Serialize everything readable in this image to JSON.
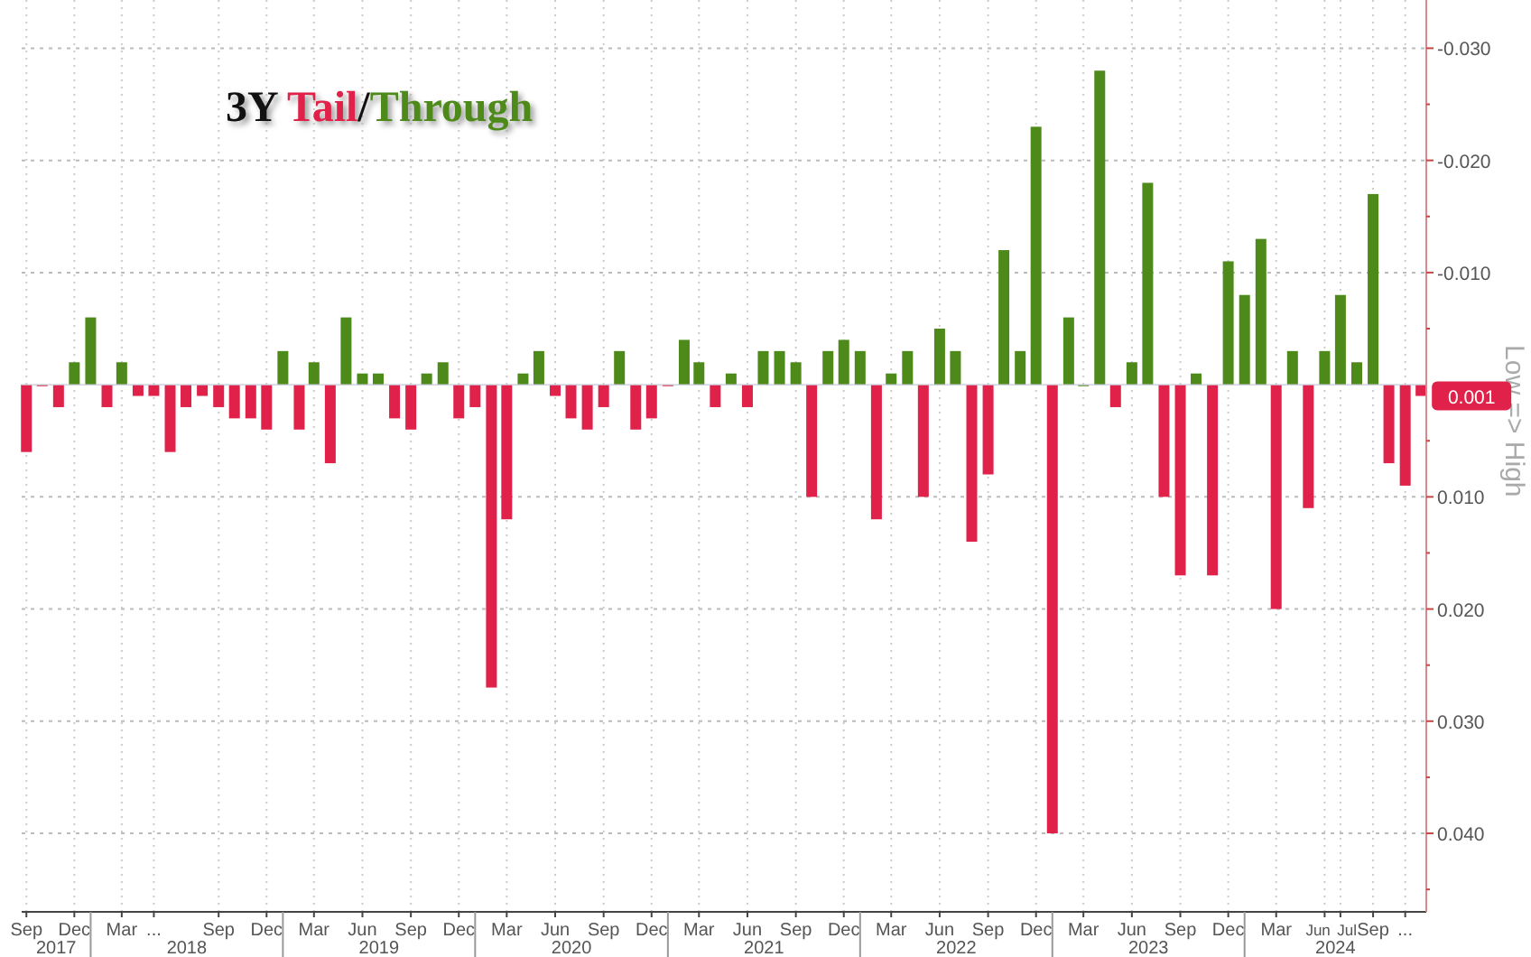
{
  "chart_data": {
    "type": "bar",
    "title": "3Y Tail/Through",
    "ylabel": "Low => High",
    "x": [
      "2017-09",
      "2017-10",
      "2017-11",
      "2017-12",
      "2018-01",
      "2018-02",
      "2018-03",
      "2018-04",
      "2018-05",
      "2018-06",
      "2018-07",
      "2018-08",
      "2018-09",
      "2018-10",
      "2018-11",
      "2018-12",
      "2019-01",
      "2019-02",
      "2019-03",
      "2019-04",
      "2019-05",
      "2019-06",
      "2019-07",
      "2019-08",
      "2019-09",
      "2019-10",
      "2019-11",
      "2019-12",
      "2020-01",
      "2020-02",
      "2020-03",
      "2020-04",
      "2020-05",
      "2020-06",
      "2020-07",
      "2020-08",
      "2020-09",
      "2020-10",
      "2020-11",
      "2020-12",
      "2021-01",
      "2021-02",
      "2021-03",
      "2021-04",
      "2021-05",
      "2021-06",
      "2021-07",
      "2021-08",
      "2021-09",
      "2021-10",
      "2021-11",
      "2021-12",
      "2022-01",
      "2022-02",
      "2022-03",
      "2022-04",
      "2022-05",
      "2022-06",
      "2022-07",
      "2022-08",
      "2022-09",
      "2022-10",
      "2022-11",
      "2022-12",
      "2023-01",
      "2023-02",
      "2023-03",
      "2023-04",
      "2023-05",
      "2023-06",
      "2023-07",
      "2023-08",
      "2023-09",
      "2023-10",
      "2023-11",
      "2023-12",
      "2024-01",
      "2024-02",
      "2024-03",
      "2024-04",
      "2024-05",
      "2024-06",
      "2024-07",
      "2024-08",
      "2024-09",
      "2024-10",
      "2024-11",
      "2024-12"
    ],
    "values": [
      0.006,
      0,
      0.002,
      -0.002,
      -0.006,
      0.002,
      -0.002,
      0.001,
      0.001,
      0.006,
      0.002,
      0.001,
      0.002,
      0.003,
      0.003,
      0.004,
      -0.003,
      0.004,
      -0.002,
      0.007,
      -0.006,
      -0.001,
      -0.001,
      0.003,
      0.004,
      -0.001,
      -0.002,
      0.003,
      0.002,
      0.027,
      0.012,
      -0.001,
      -0.003,
      0.001,
      0.003,
      0.004,
      0.002,
      -0.003,
      0.004,
      0.003,
      0,
      -0.004,
      -0.002,
      0.002,
      -0.001,
      0.002,
      -0.003,
      -0.003,
      -0.002,
      0.01,
      -0.003,
      -0.004,
      -0.003,
      0.012,
      -0.001,
      -0.003,
      0.01,
      -0.005,
      -0.003,
      0.014,
      0.008,
      -0.012,
      -0.003,
      -0.023,
      0.04,
      -0.006,
      0,
      -0.028,
      0.002,
      -0.002,
      -0.018,
      0.01,
      0.017,
      -0.001,
      0.017,
      -0.011,
      -0.008,
      -0.013,
      0.02,
      -0.003,
      0.011,
      -0.003,
      -0.008,
      -0.002,
      -0.017,
      0.007,
      0.009,
      0.001
    ],
    "colors": [
      "#e0224a",
      "#e0224a",
      "#e0224a",
      "#4e8a1a",
      "#4e8a1a",
      "#e0224a",
      "#4e8a1a",
      "#e0224a",
      "#e0224a",
      "#e0224a",
      "#e0224a",
      "#e0224a",
      "#e0224a",
      "#e0224a",
      "#e0224a",
      "#e0224a",
      "#4e8a1a",
      "#e0224a",
      "#4e8a1a",
      "#e0224a",
      "#4e8a1a",
      "#4e8a1a",
      "#4e8a1a",
      "#e0224a",
      "#e0224a",
      "#4e8a1a",
      "#4e8a1a",
      "#e0224a",
      "#e0224a",
      "#e0224a",
      "#e0224a",
      "#4e8a1a",
      "#4e8a1a",
      "#e0224a",
      "#e0224a",
      "#e0224a",
      "#e0224a",
      "#4e8a1a",
      "#e0224a",
      "#e0224a",
      "#e0224a",
      "#4e8a1a",
      "#4e8a1a",
      "#e0224a",
      "#4e8a1a",
      "#e0224a",
      "#4e8a1a",
      "#4e8a1a",
      "#4e8a1a",
      "#e0224a",
      "#4e8a1a",
      "#4e8a1a",
      "#4e8a1a",
      "#e0224a",
      "#4e8a1a",
      "#4e8a1a",
      "#e0224a",
      "#4e8a1a",
      "#4e8a1a",
      "#e0224a",
      "#e0224a",
      "#4e8a1a",
      "#4e8a1a",
      "#4e8a1a",
      "#e0224a",
      "#4e8a1a",
      "#4e8a1a",
      "#4e8a1a",
      "#e0224a",
      "#4e8a1a",
      "#4e8a1a",
      "#e0224a",
      "#e0224a",
      "#4e8a1a",
      "#e0224a",
      "#4e8a1a",
      "#4e8a1a",
      "#4e8a1a",
      "#e0224a",
      "#4e8a1a",
      "#e0224a",
      "#4e8a1a",
      "#4e8a1a",
      "#4e8a1a",
      "#4e8a1a",
      "#e0224a",
      "#e0224a",
      "#e0224a"
    ],
    "xlim": [
      "2017-08-23",
      "2024-12-11"
    ],
    "xticks": [
      {
        "value": "2017-09",
        "label": "Sep"
      },
      {
        "value": "2017-12",
        "label": "Dec"
      },
      {
        "value": "2018-03",
        "label": "Mar"
      },
      {
        "value": "2018-05",
        "label": "..."
      },
      {
        "value": "2018-09",
        "label": "Sep"
      },
      {
        "value": "2018-12",
        "label": "Dec"
      },
      {
        "value": "2019-03",
        "label": "Mar"
      },
      {
        "value": "2019-06",
        "label": "Jun"
      },
      {
        "value": "2019-09",
        "label": "Sep"
      },
      {
        "value": "2019-12",
        "label": "Dec"
      },
      {
        "value": "2020-03",
        "label": "Mar"
      },
      {
        "value": "2020-06",
        "label": "Jun"
      },
      {
        "value": "2020-09",
        "label": "Sep"
      },
      {
        "value": "2020-12",
        "label": "Dec"
      },
      {
        "value": "2021-03",
        "label": "Mar"
      },
      {
        "value": "2021-06",
        "label": "Jun"
      },
      {
        "value": "2021-09",
        "label": "Sep"
      },
      {
        "value": "2021-12",
        "label": "Dec"
      },
      {
        "value": "2022-03",
        "label": "Mar"
      },
      {
        "value": "2022-06",
        "label": "Jun"
      },
      {
        "value": "2022-09",
        "label": "Sep"
      },
      {
        "value": "2022-12",
        "label": "Dec"
      },
      {
        "value": "2023-03",
        "label": "Mar"
      },
      {
        "value": "2023-06",
        "label": "Jun"
      },
      {
        "value": "2023-09",
        "label": "Sep"
      },
      {
        "value": "2023-12",
        "label": "Dec"
      },
      {
        "value": "2024-03",
        "label": "Mar"
      },
      {
        "value": "2024-06",
        "label": "Jun"
      },
      {
        "value": "2024-07",
        "label": "Jul"
      },
      {
        "value": "2024-09",
        "label": "Sep"
      },
      {
        "value": "2024-11",
        "label": "..."
      }
    ],
    "ylim": [
      0.047,
      -0.0343
    ],
    "yticks": [
      {
        "value": -0.03,
        "label": "-0.030"
      },
      {
        "value": -0.025,
        "label": null
      },
      {
        "value": -0.02,
        "label": "-0.020"
      },
      {
        "value": -0.015,
        "label": null
      },
      {
        "value": -0.01,
        "label": "-0.010"
      },
      {
        "value": -0.005,
        "label": null
      },
      {
        "value": 0.005,
        "label": null
      },
      {
        "value": 0.01,
        "label": "0.010"
      },
      {
        "value": 0.015,
        "label": null
      },
      {
        "value": 0.02,
        "label": "0.020"
      },
      {
        "value": 0.025,
        "label": null
      },
      {
        "value": 0.03,
        "label": "0.030"
      },
      {
        "value": 0.035,
        "label": null
      },
      {
        "value": 0.04,
        "label": "0.040"
      },
      {
        "value": 0.045,
        "label": null
      }
    ],
    "grid": true,
    "annotations": [
      "2017",
      "2018",
      "2019",
      "2020",
      "2021",
      "2022",
      "2023",
      "2024",
      {
        "text": "0.001",
        "x": "2024-12",
        "y": 0.001
      }
    ]
  }
}
